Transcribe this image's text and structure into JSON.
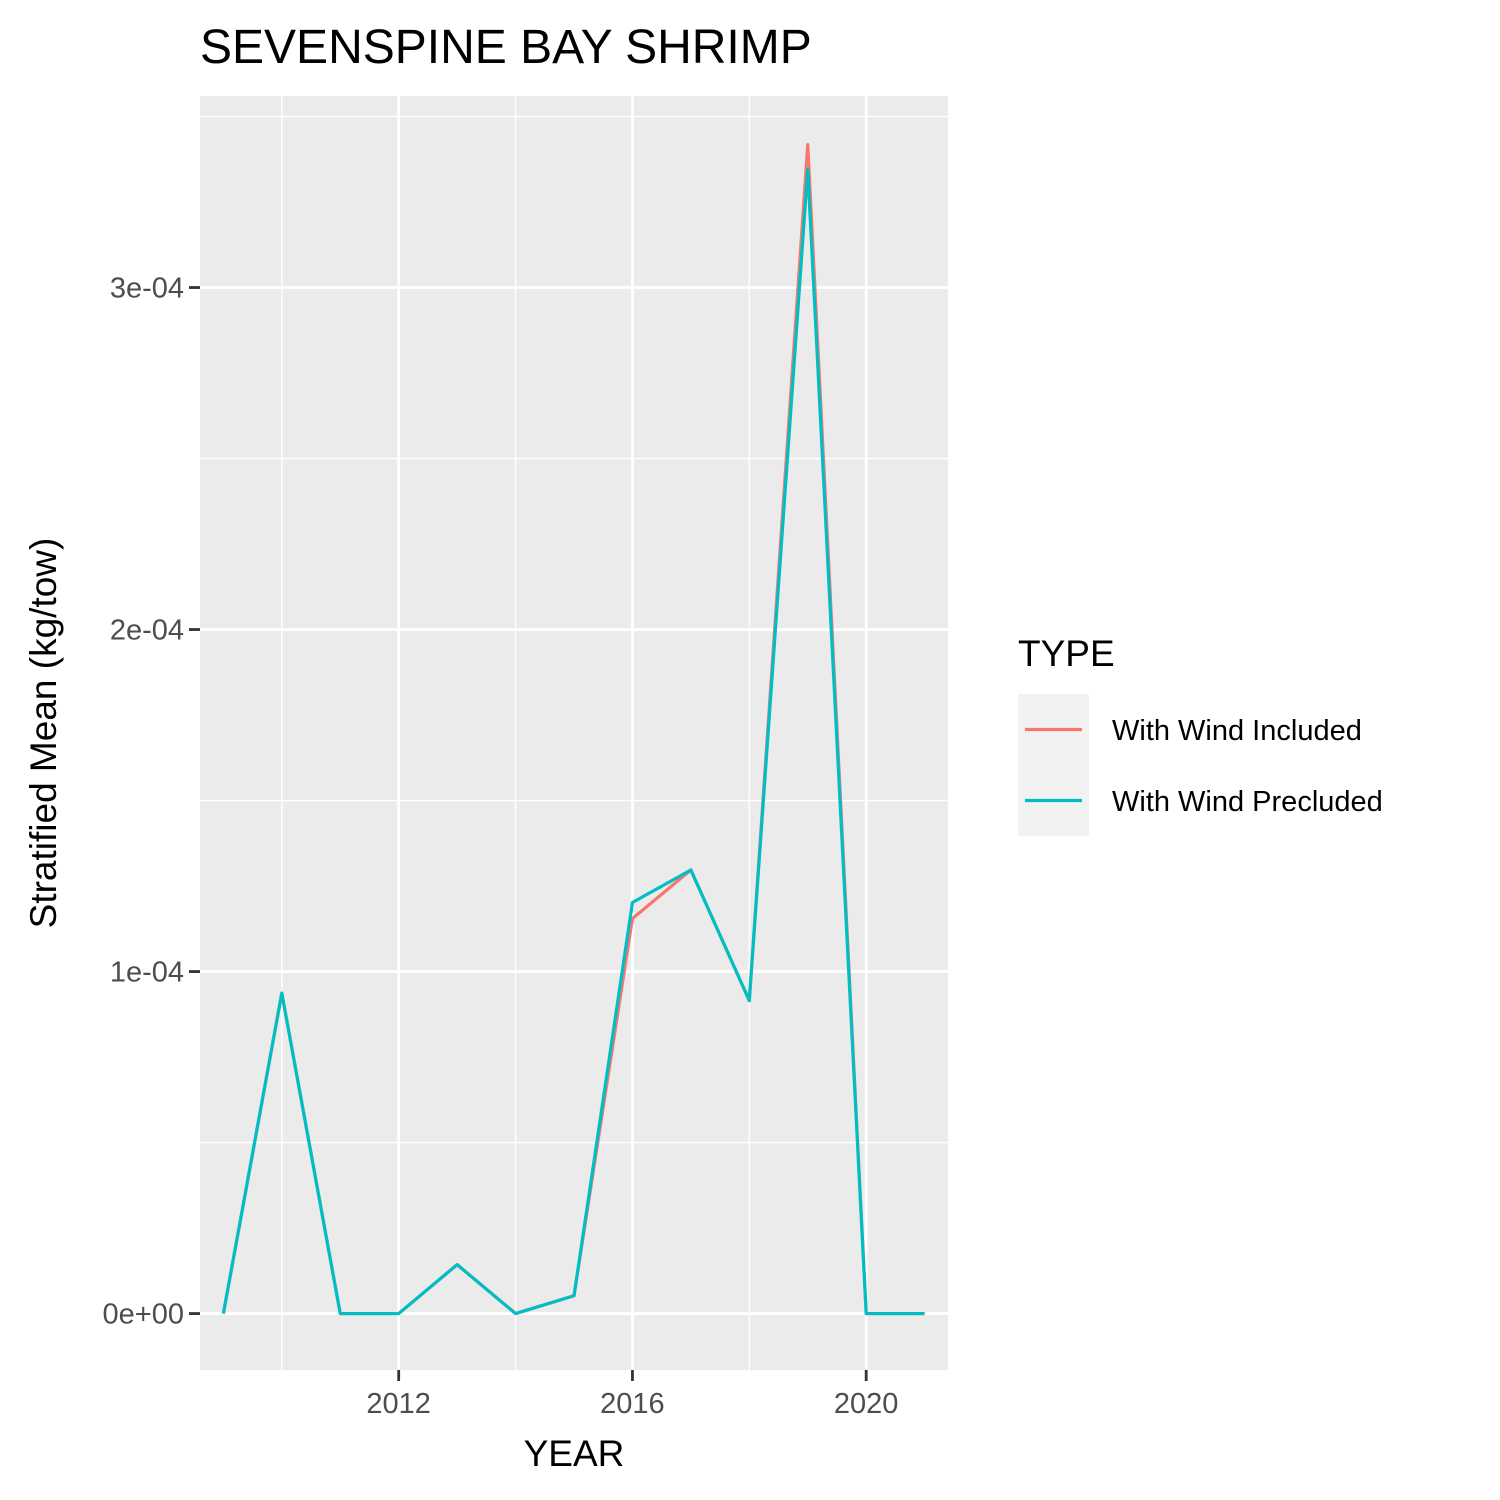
{
  "chart_data": {
    "type": "line",
    "title": "SEVENSPINE BAY SHRIMP",
    "xlabel": "YEAR",
    "ylabel": "Stratified Mean (kg/tow)",
    "xlim": [
      2008.6,
      2021.4
    ],
    "ylim": [
      -1.65e-05,
      0.000356
    ],
    "x_ticks": [
      2012,
      2016,
      2020
    ],
    "x_tick_labels": [
      "2012",
      "2016",
      "2020"
    ],
    "y_ticks": [
      0,
      0.0001,
      0.0002,
      0.0003
    ],
    "y_tick_labels": [
      "0e+00",
      "1e-04",
      "2e-04",
      "3e-04"
    ],
    "grid": true,
    "legend": {
      "title": "TYPE",
      "position": "right"
    },
    "x": [
      2009,
      2010,
      2011,
      2012,
      2013,
      2014,
      2015,
      2016,
      2017,
      2018,
      2019,
      2020,
      2021
    ],
    "series": [
      {
        "name": "With Wind Included",
        "color": "#F8766D",
        "values": [
          0,
          9.37e-05,
          0,
          0,
          1.43e-05,
          0,
          5.2e-06,
          0.0001155,
          0.0001297,
          9.15e-05,
          0.0003418,
          0,
          0
        ]
      },
      {
        "name": "With Wind Precluded",
        "color": "#00BFC4",
        "values": [
          0,
          9.37e-05,
          0,
          0,
          1.43e-05,
          0,
          5.2e-06,
          0.0001202,
          0.0001297,
          9.15e-05,
          0.0003345,
          0,
          0
        ]
      }
    ]
  }
}
